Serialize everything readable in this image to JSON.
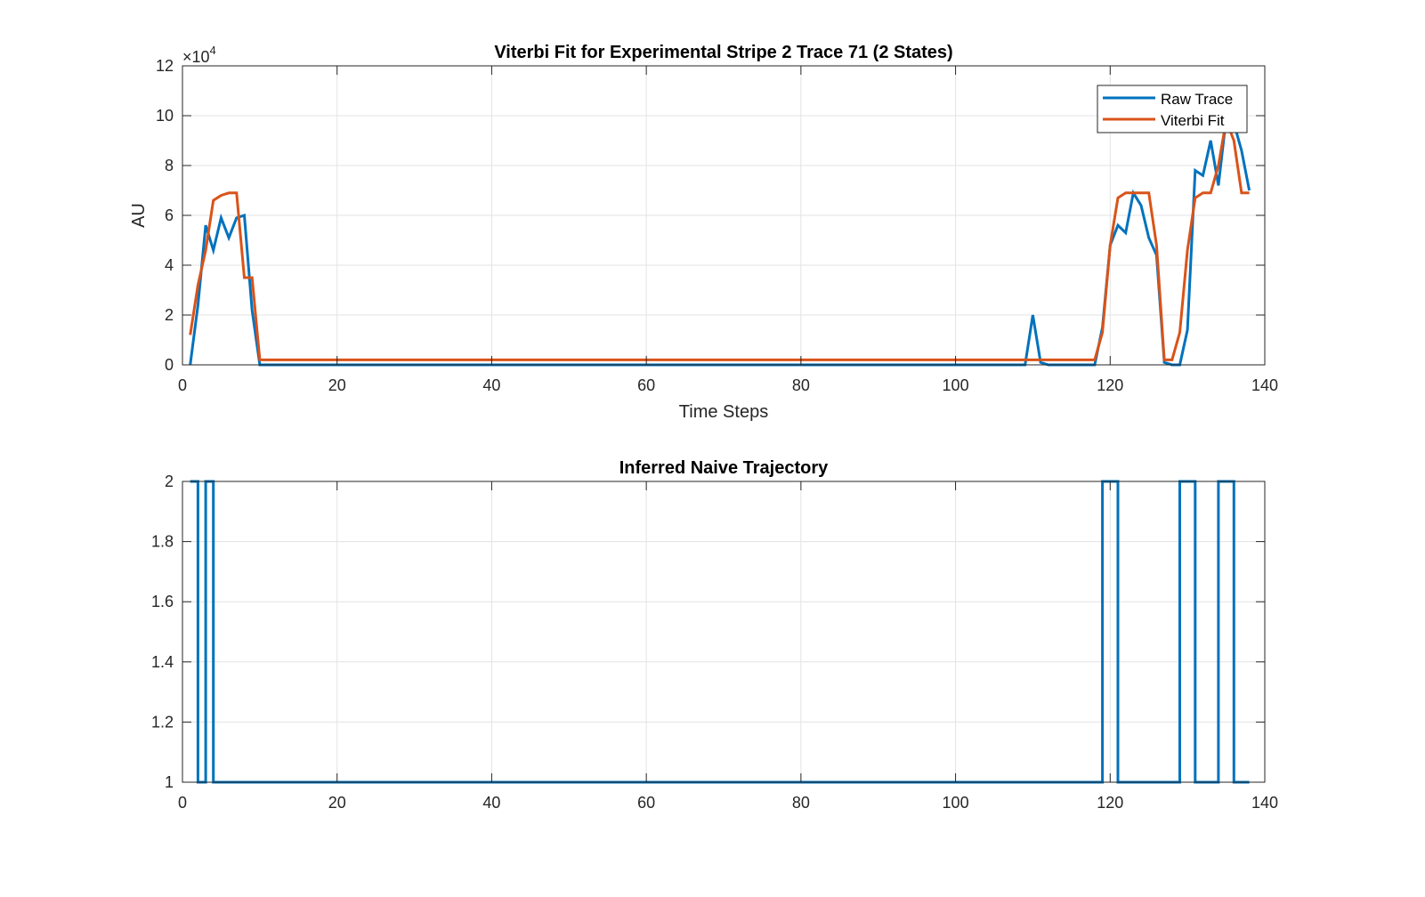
{
  "chart_data": [
    {
      "type": "line",
      "title": "Viterbi Fit for Experimental Stripe 2 Trace 71 (2 States)",
      "xlabel": "Time Steps",
      "ylabel": "AU",
      "xlim": [
        0,
        140
      ],
      "ylim": [
        0,
        12
      ],
      "y_exponent_label": "×10",
      "y_exponent_power": "4",
      "xticks": [
        "0",
        "20",
        "40",
        "60",
        "80",
        "100",
        "120",
        "140"
      ],
      "yticks": [
        "0",
        "2",
        "4",
        "6",
        "8",
        "10",
        "12"
      ],
      "grid": true,
      "legend_position": "top-right",
      "series": [
        {
          "name": "Raw Trace",
          "color": "#0072BD",
          "points": [
            [
              1,
              0
            ],
            [
              2,
              2.4
            ],
            [
              3,
              5.6
            ],
            [
              4,
              4.6
            ],
            [
              5,
              5.9
            ],
            [
              6,
              5.1
            ],
            [
              7,
              5.9
            ],
            [
              8,
              6.0
            ],
            [
              9,
              2.2
            ],
            [
              10,
              0
            ],
            [
              109,
              0
            ],
            [
              110,
              2.0
            ],
            [
              111,
              0.1
            ],
            [
              112,
              0
            ],
            [
              118,
              0
            ],
            [
              119,
              1.5
            ],
            [
              120,
              4.8
            ],
            [
              121,
              5.6
            ],
            [
              122,
              5.3
            ],
            [
              123,
              6.9
            ],
            [
              124,
              6.4
            ],
            [
              125,
              5.1
            ],
            [
              126,
              4.4
            ],
            [
              127,
              0.1
            ],
            [
              128,
              0
            ],
            [
              129,
              0
            ],
            [
              130,
              1.4
            ],
            [
              131,
              7.8
            ],
            [
              132,
              7.6
            ],
            [
              133,
              9.0
            ],
            [
              134,
              7.2
            ],
            [
              135,
              9.9
            ],
            [
              136,
              9.7
            ],
            [
              137,
              8.6
            ],
            [
              138,
              7.0
            ]
          ]
        },
        {
          "name": "Viterbi Fit",
          "color": "#D95319",
          "points": [
            [
              1,
              1.2
            ],
            [
              2,
              3.2
            ],
            [
              3,
              4.6
            ],
            [
              4,
              6.6
            ],
            [
              5,
              6.8
            ],
            [
              6,
              6.9
            ],
            [
              7,
              6.9
            ],
            [
              8,
              3.5
            ],
            [
              9,
              3.5
            ],
            [
              10,
              0.2
            ],
            [
              118,
              0.2
            ],
            [
              119,
              1.3
            ],
            [
              120,
              4.8
            ],
            [
              121,
              6.7
            ],
            [
              122,
              6.9
            ],
            [
              123,
              6.9
            ],
            [
              124,
              6.9
            ],
            [
              125,
              6.9
            ],
            [
              126,
              4.8
            ],
            [
              127,
              0.2
            ],
            [
              128,
              0.2
            ],
            [
              129,
              1.3
            ],
            [
              130,
              4.6
            ],
            [
              131,
              6.7
            ],
            [
              132,
              6.9
            ],
            [
              133,
              6.9
            ],
            [
              134,
              8.0
            ],
            [
              135,
              9.8
            ],
            [
              136,
              9.0
            ],
            [
              137,
              6.9
            ],
            [
              138,
              6.9
            ]
          ]
        }
      ]
    },
    {
      "type": "line",
      "title": "Inferred Naive Trajectory",
      "xlabel": "",
      "ylabel": "",
      "xlim": [
        0,
        140
      ],
      "ylim": [
        1,
        2
      ],
      "xticks": [
        "0",
        "20",
        "40",
        "60",
        "80",
        "100",
        "120",
        "140"
      ],
      "yticks": [
        "1",
        "1.2",
        "1.4",
        "1.6",
        "1.8",
        "2"
      ],
      "grid": true,
      "series": [
        {
          "color": "#0072BD",
          "points": [
            [
              1,
              2
            ],
            [
              2,
              2
            ],
            [
              2,
              1
            ],
            [
              3,
              1
            ],
            [
              3,
              2
            ],
            [
              4,
              2
            ],
            [
              4,
              1
            ],
            [
              119,
              1
            ],
            [
              119,
              2
            ],
            [
              121,
              2
            ],
            [
              121,
              1
            ],
            [
              129,
              1
            ],
            [
              129,
              2
            ],
            [
              131,
              2
            ],
            [
              131,
              1
            ],
            [
              134,
              1
            ],
            [
              134,
              2
            ],
            [
              136,
              2
            ],
            [
              136,
              1
            ],
            [
              138,
              1
            ]
          ]
        }
      ]
    }
  ]
}
